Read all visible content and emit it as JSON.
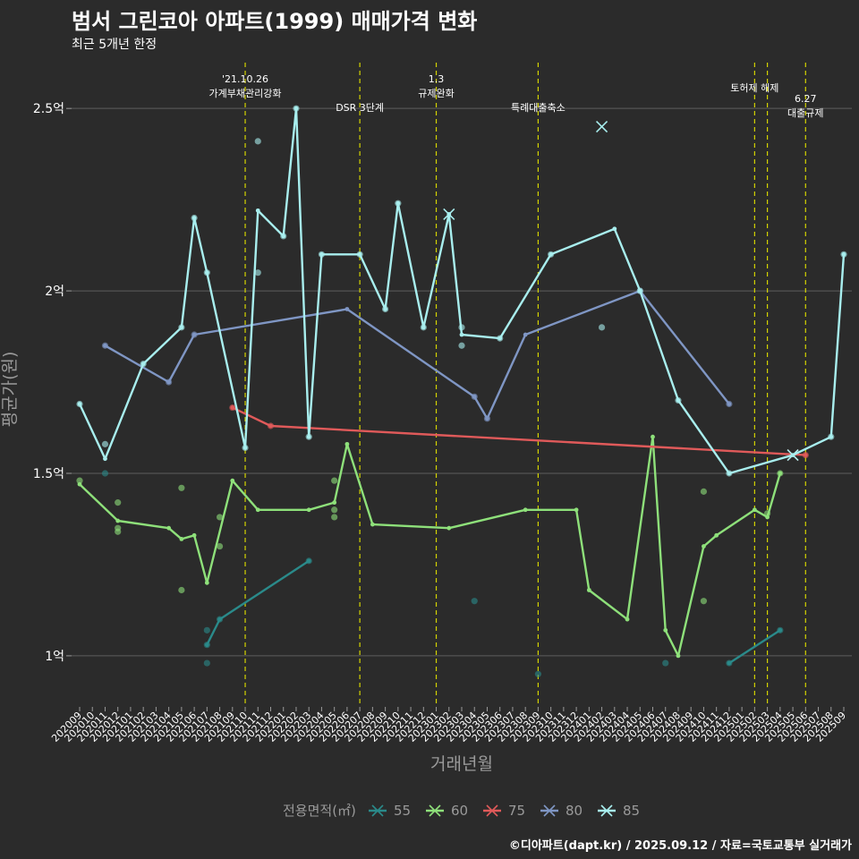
{
  "header": {
    "title": "범서 그린코아 아파트(1999) 매매가격 변화",
    "subtitle": "최근 5개년 한정"
  },
  "credit": "©디아파트(dapt.kr) / 2025.09.12 / 자료=국토교통부 실거래가",
  "chart_data": {
    "type": "line",
    "xlabel": "거래년월",
    "ylabel": "평균가(원)",
    "x_ticks": [
      "202009",
      "202010",
      "202011",
      "202012",
      "202101",
      "202102",
      "202103",
      "202104",
      "202105",
      "202106",
      "202107",
      "202108",
      "202109",
      "202110",
      "202111",
      "202112",
      "202201",
      "202202",
      "202203",
      "202204",
      "202205",
      "202206",
      "202207",
      "202208",
      "202209",
      "202210",
      "202211",
      "202212",
      "202301",
      "202302",
      "202303",
      "202304",
      "202305",
      "202306",
      "202307",
      "202308",
      "202309",
      "202310",
      "202311",
      "202312",
      "202401",
      "202402",
      "202403",
      "202404",
      "202405",
      "202406",
      "202407",
      "202408",
      "202409",
      "202410",
      "202411",
      "202412",
      "202501",
      "202502",
      "202503",
      "202504",
      "202505",
      "202506",
      "202507",
      "202508",
      "202509"
    ],
    "y_ticks": [
      {
        "value": 1.0,
        "label": "1억"
      },
      {
        "value": 1.5,
        "label": "1.5억"
      },
      {
        "value": 2.0,
        "label": "2억"
      },
      {
        "value": 2.5,
        "label": "2.5억"
      }
    ],
    "ylim": [
      0.86,
      2.65
    ],
    "grid": true,
    "y_unit": "억",
    "legend": {
      "title": "전용면적(㎡)",
      "position": "bottom"
    },
    "annotations": [
      {
        "x": "202110",
        "lines": [
          "'21.10.26",
          "가계부채관리강화"
        ],
        "row": 1
      },
      {
        "x": "202207",
        "lines": [
          "DSR 3단계"
        ],
        "row": 3
      },
      {
        "x": "202301",
        "lines": [
          "1.3",
          "규제완화"
        ],
        "row": 1
      },
      {
        "x": "202309",
        "lines": [
          "특례대출축소"
        ],
        "row": 3
      },
      {
        "x": "202502",
        "lines": [
          "토허제 해제"
        ],
        "row": 2
      },
      {
        "x": "202503",
        "lines": [],
        "row": 2
      },
      {
        "x": "202506",
        "lines": [
          "6.27",
          "대출규제"
        ],
        "row": 2.5
      }
    ],
    "series": [
      {
        "name": "55",
        "color": "#2a8a8a",
        "line": [
          [
            "202107",
            1.03
          ],
          [
            "202108",
            1.1
          ],
          [
            "202203",
            1.26
          ],
          null,
          [
            "202412",
            0.98
          ],
          [
            "202504",
            1.07
          ]
        ],
        "points": [
          [
            "202011",
            1.5
          ],
          [
            "202107",
            1.07
          ],
          [
            "202107",
            0.98
          ],
          [
            "202107",
            1.03
          ],
          [
            "202108",
            1.1
          ],
          [
            "202203",
            1.26
          ],
          [
            "202304",
            1.15
          ],
          [
            "202309",
            0.95
          ],
          [
            "202407",
            0.98
          ],
          [
            "202412",
            0.98
          ],
          [
            "202504",
            1.07
          ]
        ],
        "crosses": []
      },
      {
        "name": "60",
        "color": "#8ee07a",
        "line": [
          [
            "202009",
            1.47
          ],
          [
            "202012",
            1.37
          ],
          [
            "202104",
            1.35
          ],
          [
            "202105",
            1.32
          ],
          [
            "202106",
            1.33
          ],
          [
            "202107",
            1.2
          ],
          [
            "202109",
            1.48
          ],
          [
            "202111",
            1.4
          ],
          [
            "202203",
            1.4
          ],
          [
            "202205",
            1.42
          ],
          [
            "202206",
            1.58
          ],
          [
            "202208",
            1.36
          ],
          [
            "202302",
            1.35
          ],
          [
            "202308",
            1.4
          ],
          [
            "202312",
            1.4
          ],
          [
            "202401",
            1.18
          ],
          [
            "202404",
            1.1
          ],
          [
            "202406",
            1.6
          ],
          [
            "202407",
            1.07
          ],
          [
            "202408",
            1.0
          ],
          [
            "202410",
            1.3
          ],
          [
            "202411",
            1.33
          ],
          [
            "202502",
            1.4
          ],
          [
            "202503",
            1.38
          ],
          [
            "202504",
            1.5
          ]
        ],
        "points": [
          [
            "202009",
            1.48
          ],
          [
            "202012",
            1.42
          ],
          [
            "202012",
            1.35
          ],
          [
            "202012",
            1.34
          ],
          [
            "202105",
            1.46
          ],
          [
            "202105",
            1.18
          ],
          [
            "202108",
            1.38
          ],
          [
            "202108",
            1.3
          ],
          [
            "202205",
            1.4
          ],
          [
            "202205",
            1.38
          ],
          [
            "202205",
            1.48
          ],
          [
            "202410",
            1.45
          ],
          [
            "202410",
            1.15
          ],
          [
            "202503",
            1.39
          ],
          [
            "202504",
            1.5
          ]
        ],
        "crosses": []
      },
      {
        "name": "75",
        "color": "#e05a5a",
        "line": [
          [
            "202109",
            1.68
          ],
          [
            "202112",
            1.63
          ],
          [
            "202506",
            1.55
          ]
        ],
        "points": [
          [
            "202109",
            1.68
          ],
          [
            "202112",
            1.63
          ],
          [
            "202506",
            1.55
          ]
        ],
        "crosses": [
          [
            "202505",
            1.55
          ]
        ]
      },
      {
        "name": "80",
        "color": "#7f96c4",
        "line": [
          [
            "202011",
            1.85
          ],
          [
            "202104",
            1.75
          ],
          [
            "202106",
            1.88
          ],
          [
            "202206",
            1.95
          ],
          [
            "202304",
            1.71
          ],
          [
            "202305",
            1.65
          ],
          [
            "202308",
            1.88
          ],
          [
            "202405",
            2.0
          ],
          [
            "202412",
            1.69
          ]
        ],
        "points": [
          [
            "202011",
            1.85
          ],
          [
            "202104",
            1.75
          ],
          [
            "202106",
            1.88
          ],
          [
            "202304",
            1.71
          ],
          [
            "202305",
            1.65
          ],
          [
            "202405",
            2.0
          ],
          [
            "202412",
            1.69
          ]
        ],
        "crosses": []
      },
      {
        "name": "85",
        "color": "#a8eeee",
        "line": [
          [
            "202009",
            1.69
          ],
          [
            "202011",
            1.54
          ],
          [
            "202102",
            1.8
          ],
          [
            "202105",
            1.9
          ],
          [
            "202106",
            2.2
          ],
          [
            "202107",
            2.05
          ],
          [
            "202110",
            1.57
          ],
          [
            "202111",
            2.22
          ],
          [
            "202201",
            2.15
          ],
          [
            "202202",
            2.5
          ],
          [
            "202203",
            1.6
          ],
          [
            "202204",
            2.1
          ],
          [
            "202207",
            2.1
          ],
          [
            "202209",
            1.95
          ],
          [
            "202210",
            2.24
          ],
          [
            "202212",
            1.9
          ],
          [
            "202302",
            2.21
          ],
          [
            "202303",
            1.88
          ],
          [
            "202306",
            1.87
          ],
          [
            "202310",
            2.1
          ],
          [
            "202403",
            2.17
          ],
          [
            "202405",
            2.0
          ],
          [
            "202408",
            1.7
          ],
          [
            "202412",
            1.5
          ],
          [
            "202505",
            1.55
          ],
          [
            "202508",
            1.6
          ],
          [
            "202509",
            2.1
          ]
        ],
        "points": [
          [
            "202009",
            1.69
          ],
          [
            "202011",
            1.58
          ],
          [
            "202102",
            1.8
          ],
          [
            "202105",
            1.9
          ],
          [
            "202106",
            2.2
          ],
          [
            "202107",
            2.05
          ],
          [
            "202110",
            1.57
          ],
          [
            "202111",
            2.41
          ],
          [
            "202111",
            2.05
          ],
          [
            "202201",
            2.15
          ],
          [
            "202202",
            2.5
          ],
          [
            "202203",
            1.6
          ],
          [
            "202204",
            2.1
          ],
          [
            "202207",
            2.1
          ],
          [
            "202209",
            1.95
          ],
          [
            "202210",
            2.24
          ],
          [
            "202212",
            1.9
          ],
          [
            "202303",
            1.9
          ],
          [
            "202303",
            1.85
          ],
          [
            "202306",
            1.87
          ],
          [
            "202310",
            2.1
          ],
          [
            "202402",
            1.9
          ],
          [
            "202405",
            2.0
          ],
          [
            "202408",
            1.7
          ],
          [
            "202412",
            1.5
          ],
          [
            "202508",
            1.6
          ],
          [
            "202509",
            2.1
          ]
        ],
        "crosses": [
          [
            "202302",
            2.21
          ],
          [
            "202402",
            2.45
          ],
          [
            "202505",
            1.55
          ]
        ]
      }
    ]
  }
}
